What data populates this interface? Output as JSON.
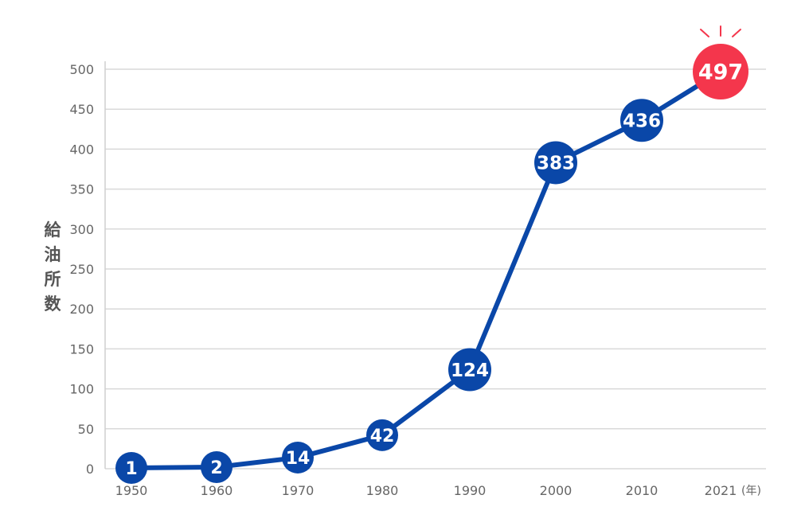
{
  "chart_data": {
    "type": "line",
    "title": "",
    "xlabel": "",
    "ylabel": "給油所数",
    "x_unit": "(年)",
    "categories": [
      "1950",
      "1960",
      "1970",
      "1980",
      "1990",
      "2000",
      "2010",
      "2021"
    ],
    "series": [
      {
        "name": "給油所数",
        "values": [
          1,
          2,
          14,
          42,
          124,
          383,
          436,
          497
        ],
        "labels": [
          "1",
          "2",
          "14",
          "42",
          "124",
          "383",
          "436",
          "497"
        ]
      }
    ],
    "y_ticks": [
      "0",
      "50",
      "100",
      "150",
      "200",
      "250",
      "300",
      "350",
      "400",
      "450",
      "500"
    ],
    "ylim": [
      0,
      500
    ],
    "grid": true,
    "highlight_index": 7
  },
  "colors": {
    "line": "#0a47a8",
    "marker": "#0a47a8",
    "highlight": "#f4364c",
    "grid": "#d9d9d9",
    "text": "#666666"
  }
}
